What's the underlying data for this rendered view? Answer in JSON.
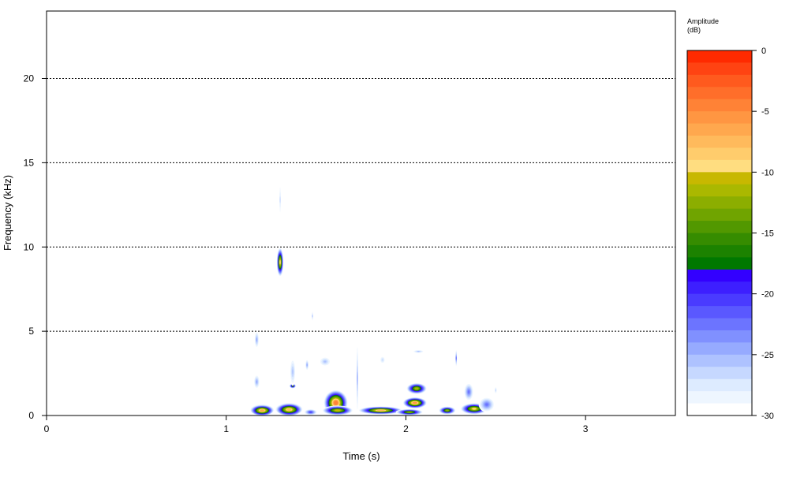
{
  "chart_data": {
    "type": "heatmap",
    "subtype": "spectrogram",
    "title": "",
    "xlabel": "Time (s)",
    "ylabel": "Frequency (kHz)",
    "xlim": [
      0,
      3.5
    ],
    "ylim": [
      0,
      24
    ],
    "xticks": [
      0,
      1,
      2,
      3
    ],
    "yticks": [
      0,
      5,
      10,
      15,
      20
    ],
    "grid": {
      "horizontal_dotted_at": [
        5,
        10,
        15,
        20
      ]
    },
    "colorbar": {
      "title_line1": "Amplitude",
      "title_line2": "(dB)",
      "range": [
        -30,
        0
      ],
      "ticks": [
        0,
        -5,
        -10,
        -15,
        -20,
        -25,
        -30
      ],
      "colors": [
        "#FF2A00",
        "#FF4312",
        "#FF5A1E",
        "#FF6E2A",
        "#FF8236",
        "#FF9642",
        "#FFA84E",
        "#FFBA5C",
        "#FFCC6C",
        "#FFDD80",
        "#C8B800",
        "#AAB800",
        "#8CAE00",
        "#70A400",
        "#529800",
        "#368C00",
        "#1C8200",
        "#007800",
        "#3300FF",
        "#3D1FFF",
        "#4A3BFF",
        "#5A58FF",
        "#6C74FF",
        "#8090FF",
        "#96AAFF",
        "#AEC2FF",
        "#C6D8FF",
        "#DDEBFF",
        "#EEF6FF",
        "#FFFFFF"
      ]
    },
    "blobs": [
      {
        "t": 1.2,
        "f": 0.3,
        "dt": 0.07,
        "df": 0.35,
        "amp": -6
      },
      {
        "t": 1.35,
        "f": 0.35,
        "dt": 0.08,
        "df": 0.4,
        "amp": -7
      },
      {
        "t": 1.47,
        "f": 0.2,
        "dt": 0.04,
        "df": 0.2,
        "amp": -20
      },
      {
        "t": 1.3,
        "f": 9.1,
        "dt": 0.02,
        "df": 0.9,
        "amp": -9
      },
      {
        "t": 1.3,
        "f": 12.8,
        "dt": 0.005,
        "df": 1.3,
        "amp": -26
      },
      {
        "t": 1.61,
        "f": 0.75,
        "dt": 0.07,
        "df": 0.8,
        "amp": -4
      },
      {
        "t": 1.62,
        "f": 0.3,
        "dt": 0.09,
        "df": 0.3,
        "amp": -10
      },
      {
        "t": 1.73,
        "f": 2.2,
        "dt": 0.006,
        "df": 2.6,
        "amp": -24
      },
      {
        "t": 1.86,
        "f": 0.3,
        "dt": 0.13,
        "df": 0.25,
        "amp": -7
      },
      {
        "t": 2.05,
        "f": 0.75,
        "dt": 0.07,
        "df": 0.35,
        "amp": -5
      },
      {
        "t": 2.06,
        "f": 1.6,
        "dt": 0.06,
        "df": 0.35,
        "amp": -11
      },
      {
        "t": 2.02,
        "f": 0.2,
        "dt": 0.08,
        "df": 0.2,
        "amp": -12
      },
      {
        "t": 2.23,
        "f": 0.3,
        "dt": 0.05,
        "df": 0.25,
        "amp": -12
      },
      {
        "t": 2.38,
        "f": 0.4,
        "dt": 0.08,
        "df": 0.35,
        "amp": -9
      },
      {
        "t": 2.45,
        "f": 0.65,
        "dt": 0.05,
        "df": 0.5,
        "amp": -22
      },
      {
        "t": 2.35,
        "f": 1.4,
        "dt": 0.03,
        "df": 0.6,
        "amp": -22
      },
      {
        "t": 1.37,
        "f": 1.75,
        "dt": 0.02,
        "df": 0.15,
        "amp": -14
      },
      {
        "t": 2.28,
        "f": 3.4,
        "dt": 0.005,
        "df": 0.6,
        "amp": -22
      },
      {
        "t": 1.17,
        "f": 4.5,
        "dt": 0.015,
        "df": 0.6,
        "amp": -24
      },
      {
        "t": 1.48,
        "f": 5.9,
        "dt": 0.004,
        "df": 0.4,
        "amp": -25
      },
      {
        "t": 1.55,
        "f": 3.2,
        "dt": 0.04,
        "df": 0.35,
        "amp": -25
      },
      {
        "t": 1.87,
        "f": 3.3,
        "dt": 0.02,
        "df": 0.3,
        "amp": -26
      },
      {
        "t": 2.07,
        "f": 3.8,
        "dt": 0.04,
        "df": 0.12,
        "amp": -25
      },
      {
        "t": 1.17,
        "f": 2.0,
        "dt": 0.02,
        "df": 0.5,
        "amp": -24
      },
      {
        "t": 1.37,
        "f": 2.6,
        "dt": 0.02,
        "df": 1.0,
        "amp": -25
      },
      {
        "t": 1.45,
        "f": 3.0,
        "dt": 0.012,
        "df": 0.4,
        "amp": -24
      },
      {
        "t": 2.5,
        "f": 1.5,
        "dt": 0.01,
        "df": 0.3,
        "amp": -26
      }
    ]
  }
}
